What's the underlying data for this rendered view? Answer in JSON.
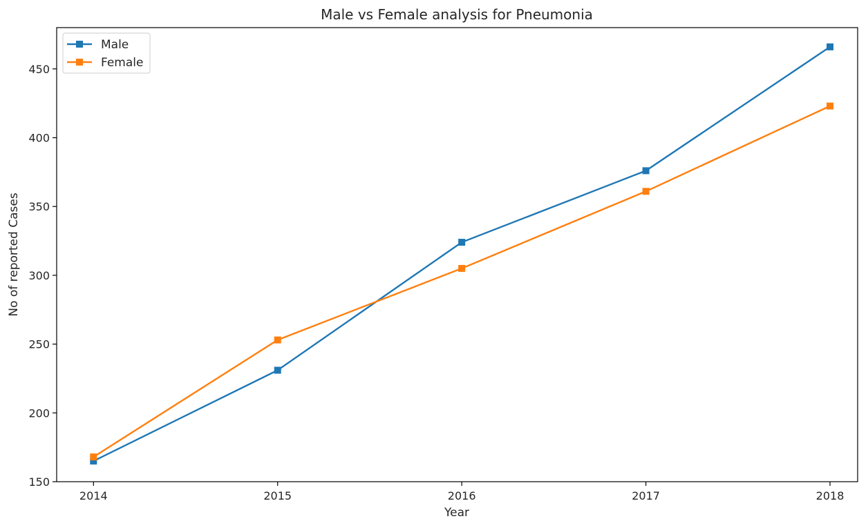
{
  "chart_data": {
    "type": "line",
    "title": "Male vs Female analysis for Pneumonia",
    "xlabel": "Year",
    "ylabel": "No of reported Cases",
    "categories": [
      "2014",
      "2015",
      "2016",
      "2017",
      "2018"
    ],
    "x": [
      2014,
      2015,
      2016,
      2017,
      2018
    ],
    "xticks": [
      "2014",
      "2015",
      "2016",
      "2017",
      "2018"
    ],
    "yticks": [
      "150",
      "200",
      "250",
      "300",
      "350",
      "400",
      "450"
    ],
    "ytick_values": [
      150,
      200,
      250,
      300,
      350,
      400,
      450
    ],
    "xlim": [
      2013.8,
      2018.15
    ],
    "ylim": [
      150,
      480
    ],
    "grid": false,
    "legend_position": "top-left",
    "marker": "square",
    "series": [
      {
        "name": "Male",
        "color": "#1f77b4",
        "values": [
          165,
          231,
          324,
          376,
          466
        ]
      },
      {
        "name": "Female",
        "color": "#ff7f0e",
        "values": [
          168,
          253,
          305,
          361,
          423
        ]
      }
    ]
  }
}
